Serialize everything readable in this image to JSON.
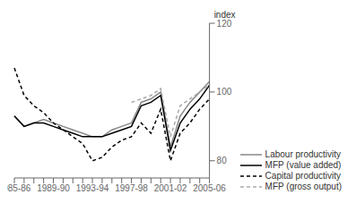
{
  "chart_data": {
    "type": "line",
    "categories": [
      "1985-86",
      null,
      null,
      null,
      "1989-90",
      null,
      null,
      null,
      "1993-94",
      null,
      null,
      null,
      "1997-98",
      null,
      null,
      null,
      "2001-02",
      null,
      null,
      null,
      "2005-06"
    ],
    "ylabel": "index",
    "ylim": [
      75,
      120
    ],
    "yticks": [
      80,
      100,
      120
    ],
    "grid": false,
    "legend": "lower right",
    "series": [
      {
        "name": "Labour productivity",
        "color": "#888888",
        "line_style": "solid",
        "values": [
          93,
          90,
          91,
          92,
          91,
          90,
          89,
          88,
          87,
          87,
          89,
          90,
          91,
          97,
          98,
          100,
          84,
          93,
          97,
          100,
          103
        ]
      },
      {
        "name": "MFP (value added)",
        "color": "#000000",
        "line_style": "solid",
        "values": [
          93,
          90,
          91,
          91,
          90,
          89,
          88,
          87,
          87,
          87,
          88,
          89,
          90,
          96,
          97,
          99,
          83,
          91,
          95,
          98,
          102
        ]
      },
      {
        "name": "Capital productivity",
        "color": "#000000",
        "line_style": "dashed",
        "values": [
          107,
          99,
          96,
          94,
          91,
          89,
          87,
          85,
          80,
          81,
          84,
          86,
          87,
          91,
          88,
          95,
          80,
          88,
          91,
          95,
          98
        ]
      },
      {
        "name": "MFP (gross output)",
        "color": "#aaaaaa",
        "line_style": "dashed",
        "values": [
          null,
          null,
          null,
          null,
          null,
          null,
          null,
          null,
          null,
          null,
          null,
          null,
          97,
          98,
          99,
          101,
          87,
          96,
          98,
          100,
          102
        ]
      }
    ]
  }
}
